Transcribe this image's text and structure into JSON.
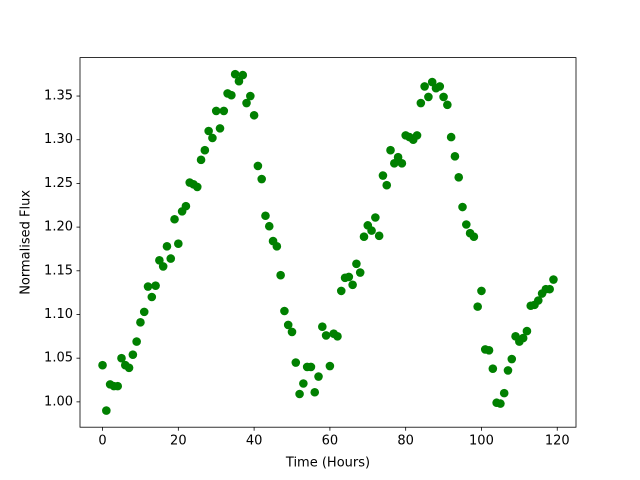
{
  "chart_data": {
    "type": "scatter",
    "xlabel": "Time (Hours)",
    "ylabel": "Normalised Flux",
    "color": "#008000",
    "x": [
      0,
      1,
      2,
      3,
      4,
      5,
      6,
      7,
      8,
      9,
      10,
      11,
      12,
      13,
      14,
      15,
      16,
      17,
      18,
      19,
      20,
      21,
      22,
      23,
      24,
      25,
      26,
      27,
      28,
      29,
      30,
      31,
      32,
      33,
      34,
      35,
      36,
      37,
      38,
      39,
      40,
      41,
      42,
      43,
      44,
      45,
      46,
      47,
      48,
      49,
      50,
      51,
      52,
      53,
      54,
      55,
      56,
      57,
      58,
      59,
      60,
      61,
      62,
      63,
      64,
      65,
      66,
      67,
      68,
      69,
      70,
      71,
      72,
      73,
      74,
      75,
      76,
      77,
      78,
      79,
      80,
      81,
      82,
      83,
      84,
      85,
      86,
      87,
      88,
      89,
      90,
      91,
      92,
      93,
      94,
      95,
      96,
      97,
      98,
      99,
      100,
      101,
      102,
      103,
      104,
      105,
      106,
      107,
      108,
      109,
      110,
      111,
      112,
      113,
      114,
      115,
      116,
      117,
      118,
      119
    ],
    "values": [
      1.042,
      0.99,
      1.02,
      1.018,
      1.018,
      1.05,
      1.042,
      1.039,
      1.054,
      1.069,
      1.091,
      1.103,
      1.132,
      1.12,
      1.133,
      1.162,
      1.155,
      1.178,
      1.164,
      1.209,
      1.181,
      1.218,
      1.224,
      1.251,
      1.249,
      1.246,
      1.277,
      1.288,
      1.31,
      1.302,
      1.333,
      1.313,
      1.333,
      1.353,
      1.351,
      1.375,
      1.367,
      1.374,
      1.342,
      1.35,
      1.328,
      1.27,
      1.255,
      1.213,
      1.201,
      1.184,
      1.178,
      1.145,
      1.104,
      1.088,
      1.08,
      1.045,
      1.009,
      1.021,
      1.04,
      1.04,
      1.011,
      1.029,
      1.086,
      1.076,
      1.041,
      1.078,
      1.075,
      1.127,
      1.142,
      1.143,
      1.134,
      1.158,
      1.148,
      1.189,
      1.202,
      1.196,
      1.211,
      1.19,
      1.259,
      1.248,
      1.288,
      1.273,
      1.28,
      1.273,
      1.305,
      1.303,
      1.3,
      1.305,
      1.342,
      1.361,
      1.349,
      1.366,
      1.359,
      1.361,
      1.349,
      1.34,
      1.303,
      1.281,
      1.257,
      1.223,
      1.203,
      1.193,
      1.189,
      1.109,
      1.127,
      1.06,
      1.059,
      1.038,
      0.999,
      0.998,
      1.01,
      1.036,
      1.049,
      1.075,
      1.069,
      1.073,
      1.081,
      1.11,
      1.111,
      1.116,
      1.124,
      1.129,
      1.129,
      1.14
    ],
    "xlim": [
      -5.95,
      124.95
    ],
    "xticks": [
      0,
      20,
      40,
      60,
      80,
      100,
      120
    ],
    "ylim": [
      0.971,
      1.394
    ],
    "yticks": [
      {
        "value": 1,
        "label": "1.00"
      },
      1.05,
      {
        "value": 1.1,
        "label": "1.10"
      },
      1.15,
      {
        "value": 1.2,
        "label": "1.20"
      },
      1.25,
      {
        "value": 1.3,
        "label": "1.30"
      },
      1.35
    ]
  }
}
